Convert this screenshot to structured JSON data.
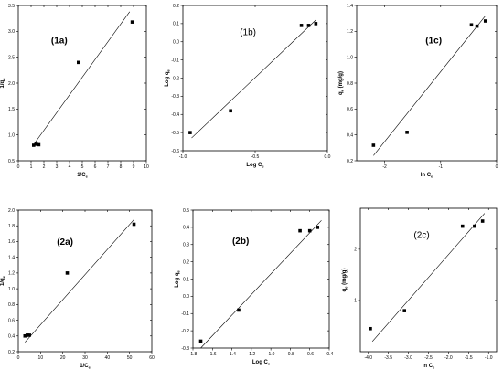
{
  "chart_data": [
    {
      "type": "scatter",
      "panel_label": "(1a)",
      "label_bold": true,
      "xlabel": "1/Ce",
      "ylabel": "1/qe",
      "xlim": [
        0,
        10
      ],
      "ylim": [
        0.5,
        3.5
      ],
      "xticks": [
        "0",
        "1",
        "2",
        "3",
        "4",
        "5",
        "6",
        "7",
        "8",
        "9",
        "10"
      ],
      "yticks": [
        "0.5",
        "1.0",
        "1.5",
        "2.0",
        "2.5",
        "3.0",
        "3.5"
      ],
      "x": [
        1.2,
        1.4,
        1.6,
        4.7,
        8.9
      ],
      "y": [
        0.8,
        0.82,
        0.81,
        2.4,
        3.18
      ],
      "fit_line": {
        "x": [
          1.1,
          8.7
        ],
        "y": [
          0.78,
          3.38
        ]
      }
    },
    {
      "type": "scatter",
      "panel_label": "(1b)",
      "label_bold": false,
      "xlabel": "Log Ce",
      "ylabel": "Log qe",
      "xlim": [
        -1.0,
        0.0
      ],
      "ylim": [
        -0.6,
        0.2
      ],
      "xticks": [
        "-1.0",
        "-0.5",
        "0.0"
      ],
      "yticks": [
        "-0.6",
        "-0.5",
        "-0.4",
        "-0.3",
        "-0.2",
        "-0.1",
        "0.0",
        "0.1",
        "0.2"
      ],
      "x": [
        -0.95,
        -0.67,
        -0.18,
        -0.13,
        -0.08
      ],
      "y": [
        -0.5,
        -0.38,
        0.09,
        0.09,
        0.1
      ],
      "fit_line": {
        "x": [
          -0.94,
          -0.08
        ],
        "y": [
          -0.53,
          0.12
        ]
      }
    },
    {
      "type": "scatter",
      "panel_label": "(1c)",
      "label_bold": true,
      "xlabel": "ln Ce",
      "ylabel": "qe (mg/g)",
      "xlim": [
        -2.5,
        0.0
      ],
      "ylim": [
        0.2,
        1.4
      ],
      "xticks": [
        "-2",
        "-1",
        "0"
      ],
      "yticks": [
        "0.2",
        "0.4",
        "0.6",
        "0.8",
        "1.0",
        "1.2",
        "1.4"
      ],
      "x": [
        -2.2,
        -1.6,
        -0.45,
        -0.35,
        -0.2
      ],
      "y": [
        0.32,
        0.42,
        1.25,
        1.24,
        1.28
      ],
      "fit_line": {
        "x": [
          -2.2,
          -0.2
        ],
        "y": [
          0.24,
          1.32
        ]
      }
    },
    {
      "type": "scatter",
      "panel_label": "(2a)",
      "label_bold": true,
      "xlabel": "1/Ce",
      "ylabel": "1/qe",
      "xlim": [
        0,
        60
      ],
      "ylim": [
        0.2,
        2.0
      ],
      "xticks": [
        "0",
        "10",
        "20",
        "30",
        "40",
        "50",
        "60"
      ],
      "yticks": [
        "0.2",
        "0.4",
        "0.6",
        "0.8",
        "1.0",
        "1.2",
        "1.4",
        "1.6",
        "1.8",
        "2.0"
      ],
      "x": [
        3,
        4,
        5,
        22,
        52
      ],
      "y": [
        0.4,
        0.41,
        0.41,
        1.2,
        1.82
      ],
      "fit_line": {
        "x": [
          3,
          52
        ],
        "y": [
          0.32,
          1.88
        ]
      }
    },
    {
      "type": "scatter",
      "panel_label": "(2b)",
      "label_bold": true,
      "xlabel": "Log Ce",
      "ylabel": "Log qe",
      "xlim": [
        -1.8,
        -0.4
      ],
      "ylim": [
        -0.3,
        0.5
      ],
      "xticks": [
        "-1.8",
        "-1.6",
        "-1.4",
        "-1.2",
        "-1.0",
        "-0.8",
        "-0.6",
        "-0.4"
      ],
      "yticks": [
        "-0.3",
        "-0.2",
        "-0.1",
        "0.0",
        "0.1",
        "0.2",
        "0.3",
        "0.4",
        "0.5"
      ],
      "x": [
        -1.72,
        -1.33,
        -0.7,
        -0.6,
        -0.52
      ],
      "y": [
        -0.26,
        -0.08,
        0.38,
        0.38,
        0.4
      ],
      "fit_line": {
        "x": [
          -1.72,
          -0.48
        ],
        "y": [
          -0.3,
          0.44
        ]
      }
    },
    {
      "type": "scatter",
      "panel_label": "(2c)",
      "label_bold": false,
      "xlabel": "ln Ce",
      "ylabel": "qe (mg/g)",
      "xlim": [
        -4.2,
        -0.8
      ],
      "ylim": [
        0.0,
        2.8
      ],
      "xticks": [
        "-4.0",
        "-3.5",
        "-3.0",
        "-2.5",
        "-2.0",
        "-1.5",
        "-1.0"
      ],
      "yticks": [
        "1",
        "2"
      ],
      "x": [
        -3.95,
        -3.1,
        -1.65,
        -1.35,
        -1.15
      ],
      "y": [
        0.45,
        0.8,
        2.45,
        2.45,
        2.55
      ],
      "fit_line": {
        "x": [
          -3.9,
          -1.1
        ],
        "y": [
          0.2,
          2.7
        ]
      }
    }
  ]
}
